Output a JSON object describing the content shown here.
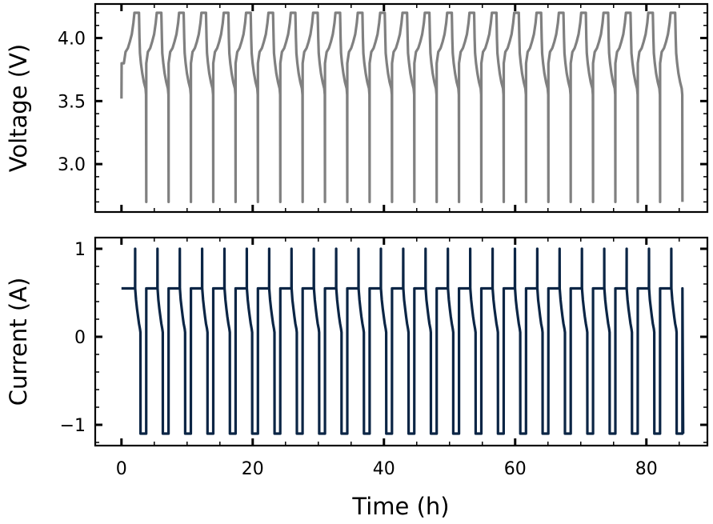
{
  "chart_data": [
    {
      "type": "line",
      "panel": "top",
      "title": "",
      "xlabel": "",
      "ylabel": "Voltage (V)",
      "xlim": [
        -4,
        89.3
      ],
      "ylim": [
        2.62,
        4.27
      ],
      "xticks": [
        0,
        20,
        40,
        60,
        80
      ],
      "yticks": [
        3.0,
        3.5,
        4.0
      ],
      "ytick_labels": [
        "3.0",
        "3.5",
        "4.0"
      ],
      "x_minor_step": 5,
      "y_minor_step": 0.1,
      "grid": false,
      "series": [
        {
          "name": "Voltage",
          "color": "#808080",
          "initial_points": [
            [
              0,
              3.52
            ],
            [
              0.02,
              3.8
            ]
          ],
          "cycle_start": 0.37,
          "cycle_period": 3.405,
          "cycle_count": 25,
          "cycle_profile": [
            [
              0,
              3.8
            ],
            [
              0.25,
              3.89
            ],
            [
              0.6,
              3.92
            ],
            [
              0.9,
              3.97
            ],
            [
              1.2,
              4.03
            ],
            [
              1.45,
              4.12
            ],
            [
              1.6,
              4.2
            ],
            [
              2.3,
              4.2
            ],
            [
              2.38,
              4.0
            ],
            [
              2.45,
              3.88
            ],
            [
              2.6,
              3.8
            ],
            [
              2.8,
              3.72
            ],
            [
              3.05,
              3.65
            ],
            [
              3.3,
              3.6
            ],
            [
              3.38,
              3.55
            ],
            [
              3.405,
              2.7
            ]
          ]
        }
      ]
    },
    {
      "type": "line",
      "panel": "bottom",
      "title": "",
      "xlabel": "Time (h)",
      "ylabel": "Current (A)",
      "xlim": [
        -4,
        89.3
      ],
      "ylim": [
        -1.236,
        1.127
      ],
      "xticks": [
        0,
        20,
        40,
        60,
        80
      ],
      "xtick_labels": [
        "0",
        "20",
        "40",
        "60",
        "80"
      ],
      "yticks": [
        -1,
        0,
        1
      ],
      "ytick_labels": [
        "−1",
        "0",
        "1"
      ],
      "x_minor_step": 5,
      "y_minor_step": 0.2,
      "grid": false,
      "series": [
        {
          "name": "Current",
          "color": "#0b2545",
          "initial_points": [
            [
              0,
              0.55
            ]
          ],
          "cycle_start": 0.37,
          "cycle_period": 3.405,
          "cycle_count": 25,
          "cycle_profile": [
            [
              0,
              0.55
            ],
            [
              1.7,
              0.55
            ],
            [
              1.71,
              1.0
            ],
            [
              1.72,
              0.55
            ],
            [
              1.85,
              0.42
            ],
            [
              2.0,
              0.32
            ],
            [
              2.15,
              0.23
            ],
            [
              2.3,
              0.15
            ],
            [
              2.45,
              0.09
            ],
            [
              2.52,
              0.05
            ],
            [
              2.53,
              -1.1
            ],
            [
              3.4,
              -1.1
            ],
            [
              3.405,
              0.55
            ]
          ],
          "final_points": [
            [
              85.6,
              -1.1
            ]
          ]
        }
      ]
    }
  ]
}
